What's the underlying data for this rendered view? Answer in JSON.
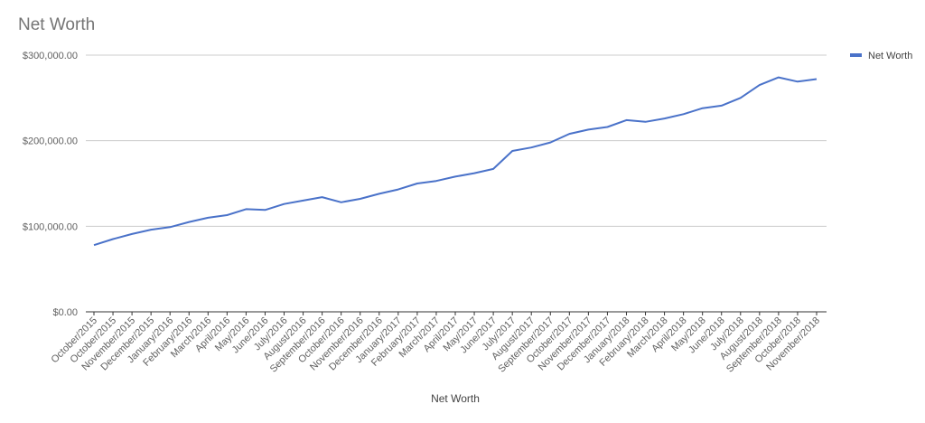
{
  "chart_data": {
    "type": "line",
    "title": "Net Worth",
    "xlabel": "Net Worth",
    "ylabel": "",
    "ylim": [
      0,
      300000
    ],
    "y_ticks": [
      "$0.00",
      "$100,000.00",
      "$200,000.00",
      "$300,000.00"
    ],
    "y_tick_values": [
      0,
      100000,
      200000,
      300000
    ],
    "grid": true,
    "legend_position": "top-right",
    "categories": [
      "October/2015",
      "October/2015",
      "November/2015",
      "December/2015",
      "January/2016",
      "February/2016",
      "March/2016",
      "April/2016",
      "May/2016",
      "June/2016",
      "July/2016",
      "August/2016",
      "September/2016",
      "October/2016",
      "November/2016",
      "December/2016",
      "January/2017",
      "February/2017",
      "March/2017",
      "April/2017",
      "May/2017",
      "June/2017",
      "July/2017",
      "August/2017",
      "September/2017",
      "October/2017",
      "November/2017",
      "December/2017",
      "January/2018",
      "February/2018",
      "March/2018",
      "April/2018",
      "May/2018",
      "June/2018",
      "July/2018",
      "August/2018",
      "September/2018",
      "October/2018",
      "November/2018"
    ],
    "series": [
      {
        "name": "Net Worth",
        "color": "#4a72c9",
        "values": [
          78000,
          85000,
          91000,
          96000,
          99000,
          105000,
          110000,
          113000,
          120000,
          119000,
          126000,
          130000,
          134000,
          128000,
          132000,
          138000,
          143000,
          150000,
          153000,
          158000,
          162000,
          167000,
          188000,
          192000,
          198000,
          208000,
          213000,
          216000,
          224000,
          222000,
          226000,
          231000,
          238000,
          241000,
          250000,
          265000,
          274000,
          269000,
          272000
        ]
      }
    ]
  }
}
